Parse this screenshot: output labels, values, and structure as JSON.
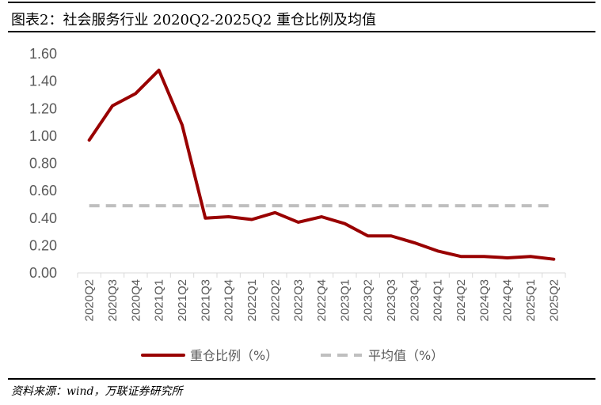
{
  "header": {
    "title": "图表2：社会服务行业 2020Q2-2025Q2 重仓比例及均值"
  },
  "footer": {
    "source": "资料来源：wind，万联证券研究所"
  },
  "colors": {
    "series_line": "#990000",
    "average_line": "#bfbfbf",
    "axis_text": "#595959"
  },
  "chart_data": {
    "type": "line",
    "title": "",
    "xlabel": "",
    "ylabel": "",
    "categories": [
      "2020Q2",
      "2020Q3",
      "2020Q4",
      "2021Q1",
      "2021Q2",
      "2021Q3",
      "2021Q4",
      "2022Q1",
      "2022Q2",
      "2022Q3",
      "2022Q4",
      "2023Q1",
      "2023Q2",
      "2023Q3",
      "2023Q4",
      "2024Q1",
      "2024Q2",
      "2024Q3",
      "2024Q4",
      "2025Q1",
      "2025Q2"
    ],
    "y_ticks": [
      "0.00",
      "0.20",
      "0.40",
      "0.60",
      "0.80",
      "1.00",
      "1.20",
      "1.40",
      "1.60"
    ],
    "ylim": [
      0,
      1.6
    ],
    "grid": false,
    "legend_position": "bottom",
    "series": [
      {
        "name": "重仓比例（%）",
        "style": "solid",
        "values": [
          0.97,
          1.22,
          1.31,
          1.48,
          1.08,
          0.4,
          0.41,
          0.39,
          0.44,
          0.37,
          0.41,
          0.36,
          0.27,
          0.27,
          0.22,
          0.16,
          0.12,
          0.12,
          0.11,
          0.12,
          0.1
        ]
      },
      {
        "name": "平均值（%）",
        "style": "dashed",
        "values": [
          0.49,
          0.49,
          0.49,
          0.49,
          0.49,
          0.49,
          0.49,
          0.49,
          0.49,
          0.49,
          0.49,
          0.49,
          0.49,
          0.49,
          0.49,
          0.49,
          0.49,
          0.49,
          0.49,
          0.49,
          0.49
        ]
      }
    ]
  }
}
